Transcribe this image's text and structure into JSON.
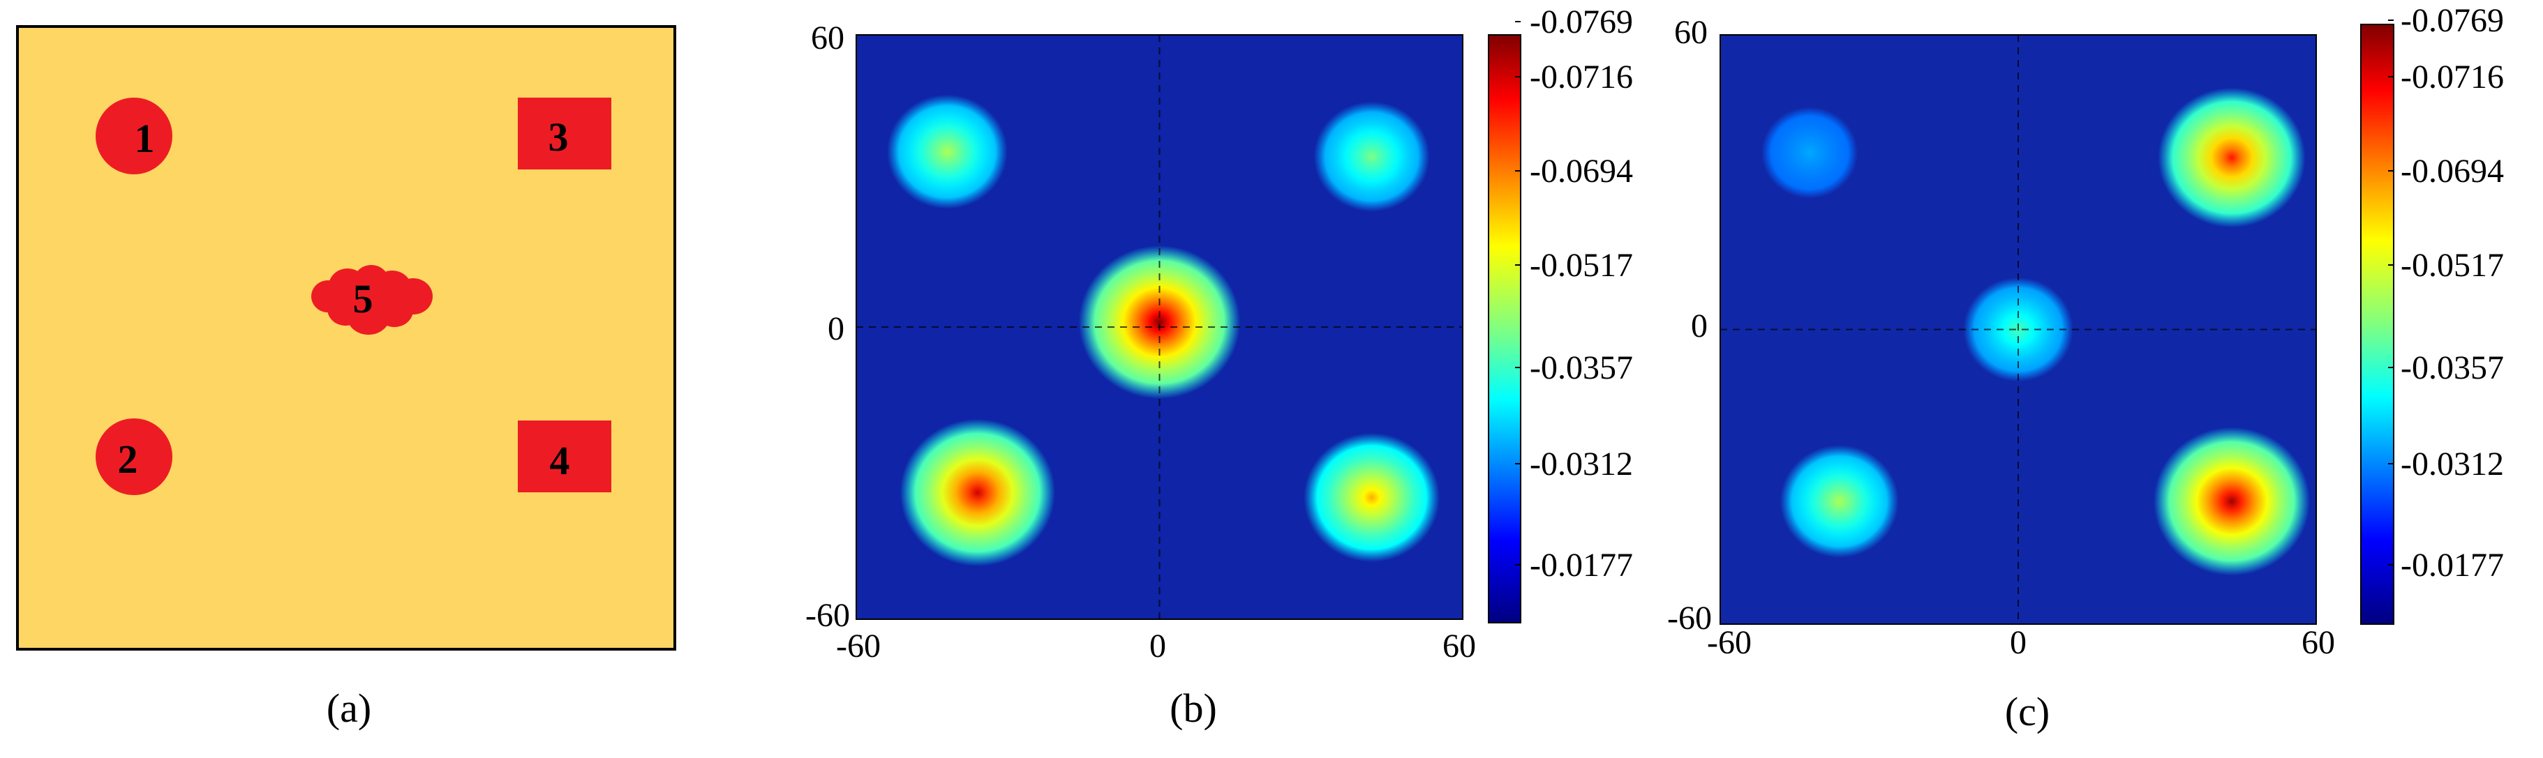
{
  "panel_labels": [
    "(a)",
    "(b)",
    "(c)"
  ],
  "schematic": {
    "background_color": "#FDD663",
    "defect_color": "#ED1C24",
    "defects": [
      {
        "label": "1",
        "shape": "circle"
      },
      {
        "label": "2",
        "shape": "circle"
      },
      {
        "label": "3",
        "shape": "square"
      },
      {
        "label": "4",
        "shape": "square"
      },
      {
        "label": "5",
        "shape": "irregular-cluster"
      }
    ]
  },
  "chart_data": [
    {
      "type": "heatmap",
      "panel": "(b)",
      "colormap": "jet",
      "x_ticks": [
        "-60",
        "0",
        "60"
      ],
      "y_ticks": [
        "60",
        "0",
        "-60"
      ],
      "xlim": [
        -60,
        60
      ],
      "ylim": [
        -60,
        60
      ],
      "crosshair": true,
      "colorbar_ticks": [
        "-0.0769",
        "-0.0716",
        "-0.0694",
        "-0.0517",
        "-0.0357",
        "-0.0312",
        "-0.0177"
      ],
      "hotspots": [
        {
          "x": -42,
          "y": 36,
          "intensity": 0.55
        },
        {
          "x": 42,
          "y": 35,
          "intensity": 0.5
        },
        {
          "x": 0,
          "y": 1,
          "intensity": 1.0
        },
        {
          "x": -36,
          "y": -34,
          "intensity": 0.93
        },
        {
          "x": 42,
          "y": -35,
          "intensity": 0.72
        }
      ]
    },
    {
      "type": "heatmap",
      "panel": "(c)",
      "colormap": "jet",
      "x_ticks": [
        "-60",
        "0",
        "60"
      ],
      "y_ticks": [
        "60",
        "0",
        "-60"
      ],
      "xlim": [
        -60,
        60
      ],
      "ylim": [
        -60,
        60
      ],
      "crosshair": true,
      "colorbar_ticks": [
        "-0.0769",
        "-0.0716",
        "-0.0694",
        "-0.0517",
        "-0.0357",
        "-0.0312",
        "-0.0177"
      ],
      "hotspots": [
        {
          "x": -42,
          "y": 36,
          "intensity": 0.3
        },
        {
          "x": 43,
          "y": 35,
          "intensity": 0.87
        },
        {
          "x": 0,
          "y": 0,
          "intensity": 0.45
        },
        {
          "x": -36,
          "y": -35,
          "intensity": 0.55
        },
        {
          "x": 43,
          "y": -35,
          "intensity": 0.97
        }
      ]
    }
  ]
}
